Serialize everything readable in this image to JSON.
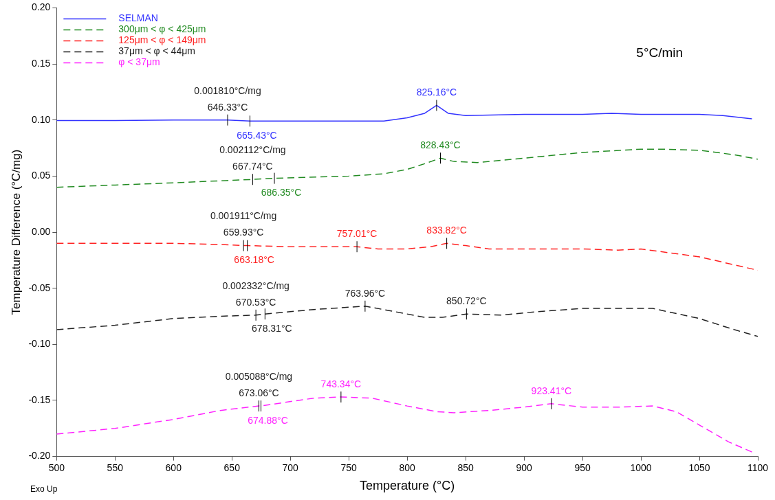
{
  "chart_data": {
    "type": "line",
    "xlabel": "Temperature (°C)",
    "ylabel": "Temperature Difference (°C/mg)",
    "xlim": [
      500,
      1100
    ],
    "xticks": [
      500,
      550,
      600,
      650,
      700,
      750,
      800,
      850,
      900,
      950,
      1000,
      1050,
      1100
    ],
    "ylim": [
      -0.2,
      0.2
    ],
    "yticks": [
      {
        "value": -0.2,
        "label": "-0.20"
      },
      {
        "value": -0.15,
        "label": "-0.15"
      },
      {
        "value": -0.1,
        "label": "-0.10"
      },
      {
        "value": -0.05,
        "label": "-0.05"
      },
      {
        "value": 0,
        "label": "0.00"
      },
      {
        "value": 0.05,
        "label": "0.05"
      },
      {
        "value": 0.1,
        "label": "0.10"
      },
      {
        "value": 0.15,
        "label": "0.15"
      },
      {
        "value": 0.2,
        "label": "0.20"
      }
    ],
    "grid": false,
    "legend": "top left",
    "marker": "none",
    "series": [
      {
        "name": "SELMAN",
        "color": "#3333ff",
        "line_style": "solid",
        "x": [
          500,
          550,
          600,
          646.33,
          665.43,
          700,
          780,
          800,
          815,
          825.16,
          835,
          850,
          900,
          950,
          975,
          1000,
          1050,
          1070,
          1095
        ],
        "values": [
          0.0995,
          0.0995,
          0.1,
          0.1,
          0.099,
          0.099,
          0.099,
          0.102,
          0.106,
          0.113,
          0.106,
          0.104,
          0.105,
          0.105,
          0.106,
          0.105,
          0.105,
          0.104,
          0.101
        ]
      },
      {
        "name": "300μm < φ < 425μm",
        "color": "#228b22",
        "line_style": "dashed",
        "x": [
          500,
          550,
          600,
          645,
          667.74,
          686.35,
          750,
          780,
          800,
          815,
          828.43,
          840,
          860,
          900,
          950,
          1000,
          1020,
          1050,
          1080,
          1100
        ],
        "values": [
          0.04,
          0.042,
          0.044,
          0.046,
          0.047,
          0.048,
          0.05,
          0.052,
          0.056,
          0.061,
          0.066,
          0.063,
          0.062,
          0.066,
          0.071,
          0.074,
          0.074,
          0.073,
          0.069,
          0.065
        ]
      },
      {
        "name": "125μm < φ < 149μm",
        "color": "#ff2222",
        "line_style": "dashed",
        "x": [
          500,
          600,
          640,
          659.93,
          663.18,
          700,
          757.01,
          775,
          800,
          820,
          833.82,
          850,
          870,
          950,
          980,
          1000,
          1050,
          1100
        ],
        "values": [
          -0.01,
          -0.01,
          -0.011,
          -0.012,
          -0.012,
          -0.013,
          -0.013,
          -0.015,
          -0.015,
          -0.013,
          -0.01,
          -0.012,
          -0.015,
          -0.015,
          -0.016,
          -0.015,
          -0.022,
          -0.034
        ]
      },
      {
        "name": "37μm < φ < 44μm",
        "color": "#222222",
        "line_style": "dashed",
        "x": [
          500,
          550,
          600,
          640,
          670.53,
          678.31,
          720,
          763.96,
          790,
          815,
          830,
          850.72,
          880,
          910,
          950,
          1000,
          1010,
          1050,
          1080,
          1100
        ],
        "values": [
          -0.087,
          -0.083,
          -0.077,
          -0.075,
          -0.074,
          -0.073,
          -0.069,
          -0.066,
          -0.071,
          -0.076,
          -0.076,
          -0.073,
          -0.074,
          -0.071,
          -0.068,
          -0.068,
          -0.068,
          -0.077,
          -0.087,
          -0.093
        ]
      },
      {
        "name": "φ < 37μm",
        "color": "#ff22ff",
        "line_style": "dashed",
        "x": [
          500,
          550,
          600,
          640,
          673.06,
          674.88,
          720,
          743.34,
          770,
          800,
          825,
          840,
          870,
          900,
          923.41,
          950,
          980,
          1010,
          1030,
          1050,
          1075,
          1095
        ],
        "values": [
          -0.18,
          -0.175,
          -0.167,
          -0.159,
          -0.155,
          -0.155,
          -0.148,
          -0.147,
          -0.148,
          -0.155,
          -0.16,
          -0.161,
          -0.159,
          -0.156,
          -0.153,
          -0.156,
          -0.156,
          -0.155,
          -0.16,
          -0.172,
          -0.187,
          -0.196
        ]
      }
    ],
    "annotations": [
      "5°C/min",
      "Exo Up",
      "0.001810°C/mg",
      "0.002112°C/mg",
      "0.001911°C/mg",
      "0.002332°C/mg",
      "0.005088°C/mg",
      {
        "text": "646.33°C",
        "x": 646.33,
        "y": 0.1
      },
      {
        "text": "665.43°C",
        "x": 665.43,
        "y": 0.099
      },
      {
        "text": "825.16°C",
        "x": 825.16,
        "y": 0.113
      },
      {
        "text": "667.74°C",
        "x": 667.74,
        "y": 0.047
      },
      {
        "text": "686.35°C",
        "x": 686.35,
        "y": 0.048
      },
      {
        "text": "828.43°C",
        "x": 828.43,
        "y": 0.066
      },
      {
        "text": "659.93°C",
        "x": 659.93,
        "y": -0.012
      },
      {
        "text": "663.18°C",
        "x": 663.18,
        "y": -0.012
      },
      {
        "text": "757.01°C",
        "x": 757.01,
        "y": -0.013
      },
      {
        "text": "833.82°C",
        "x": 833.82,
        "y": -0.01
      },
      {
        "text": "670.53°C",
        "x": 670.53,
        "y": -0.074
      },
      {
        "text": "678.31°C",
        "x": 678.31,
        "y": -0.073
      },
      {
        "text": "763.96°C",
        "x": 763.96,
        "y": -0.066
      },
      {
        "text": "850.72°C",
        "x": 850.72,
        "y": -0.073
      },
      {
        "text": "673.06°C",
        "x": 673.06,
        "y": -0.155
      },
      {
        "text": "674.88°C",
        "x": 674.88,
        "y": -0.155
      },
      {
        "text": "743.34°C",
        "x": 743.34,
        "y": -0.147
      },
      {
        "text": "923.41°C",
        "x": 923.41,
        "y": -0.153
      }
    ]
  }
}
